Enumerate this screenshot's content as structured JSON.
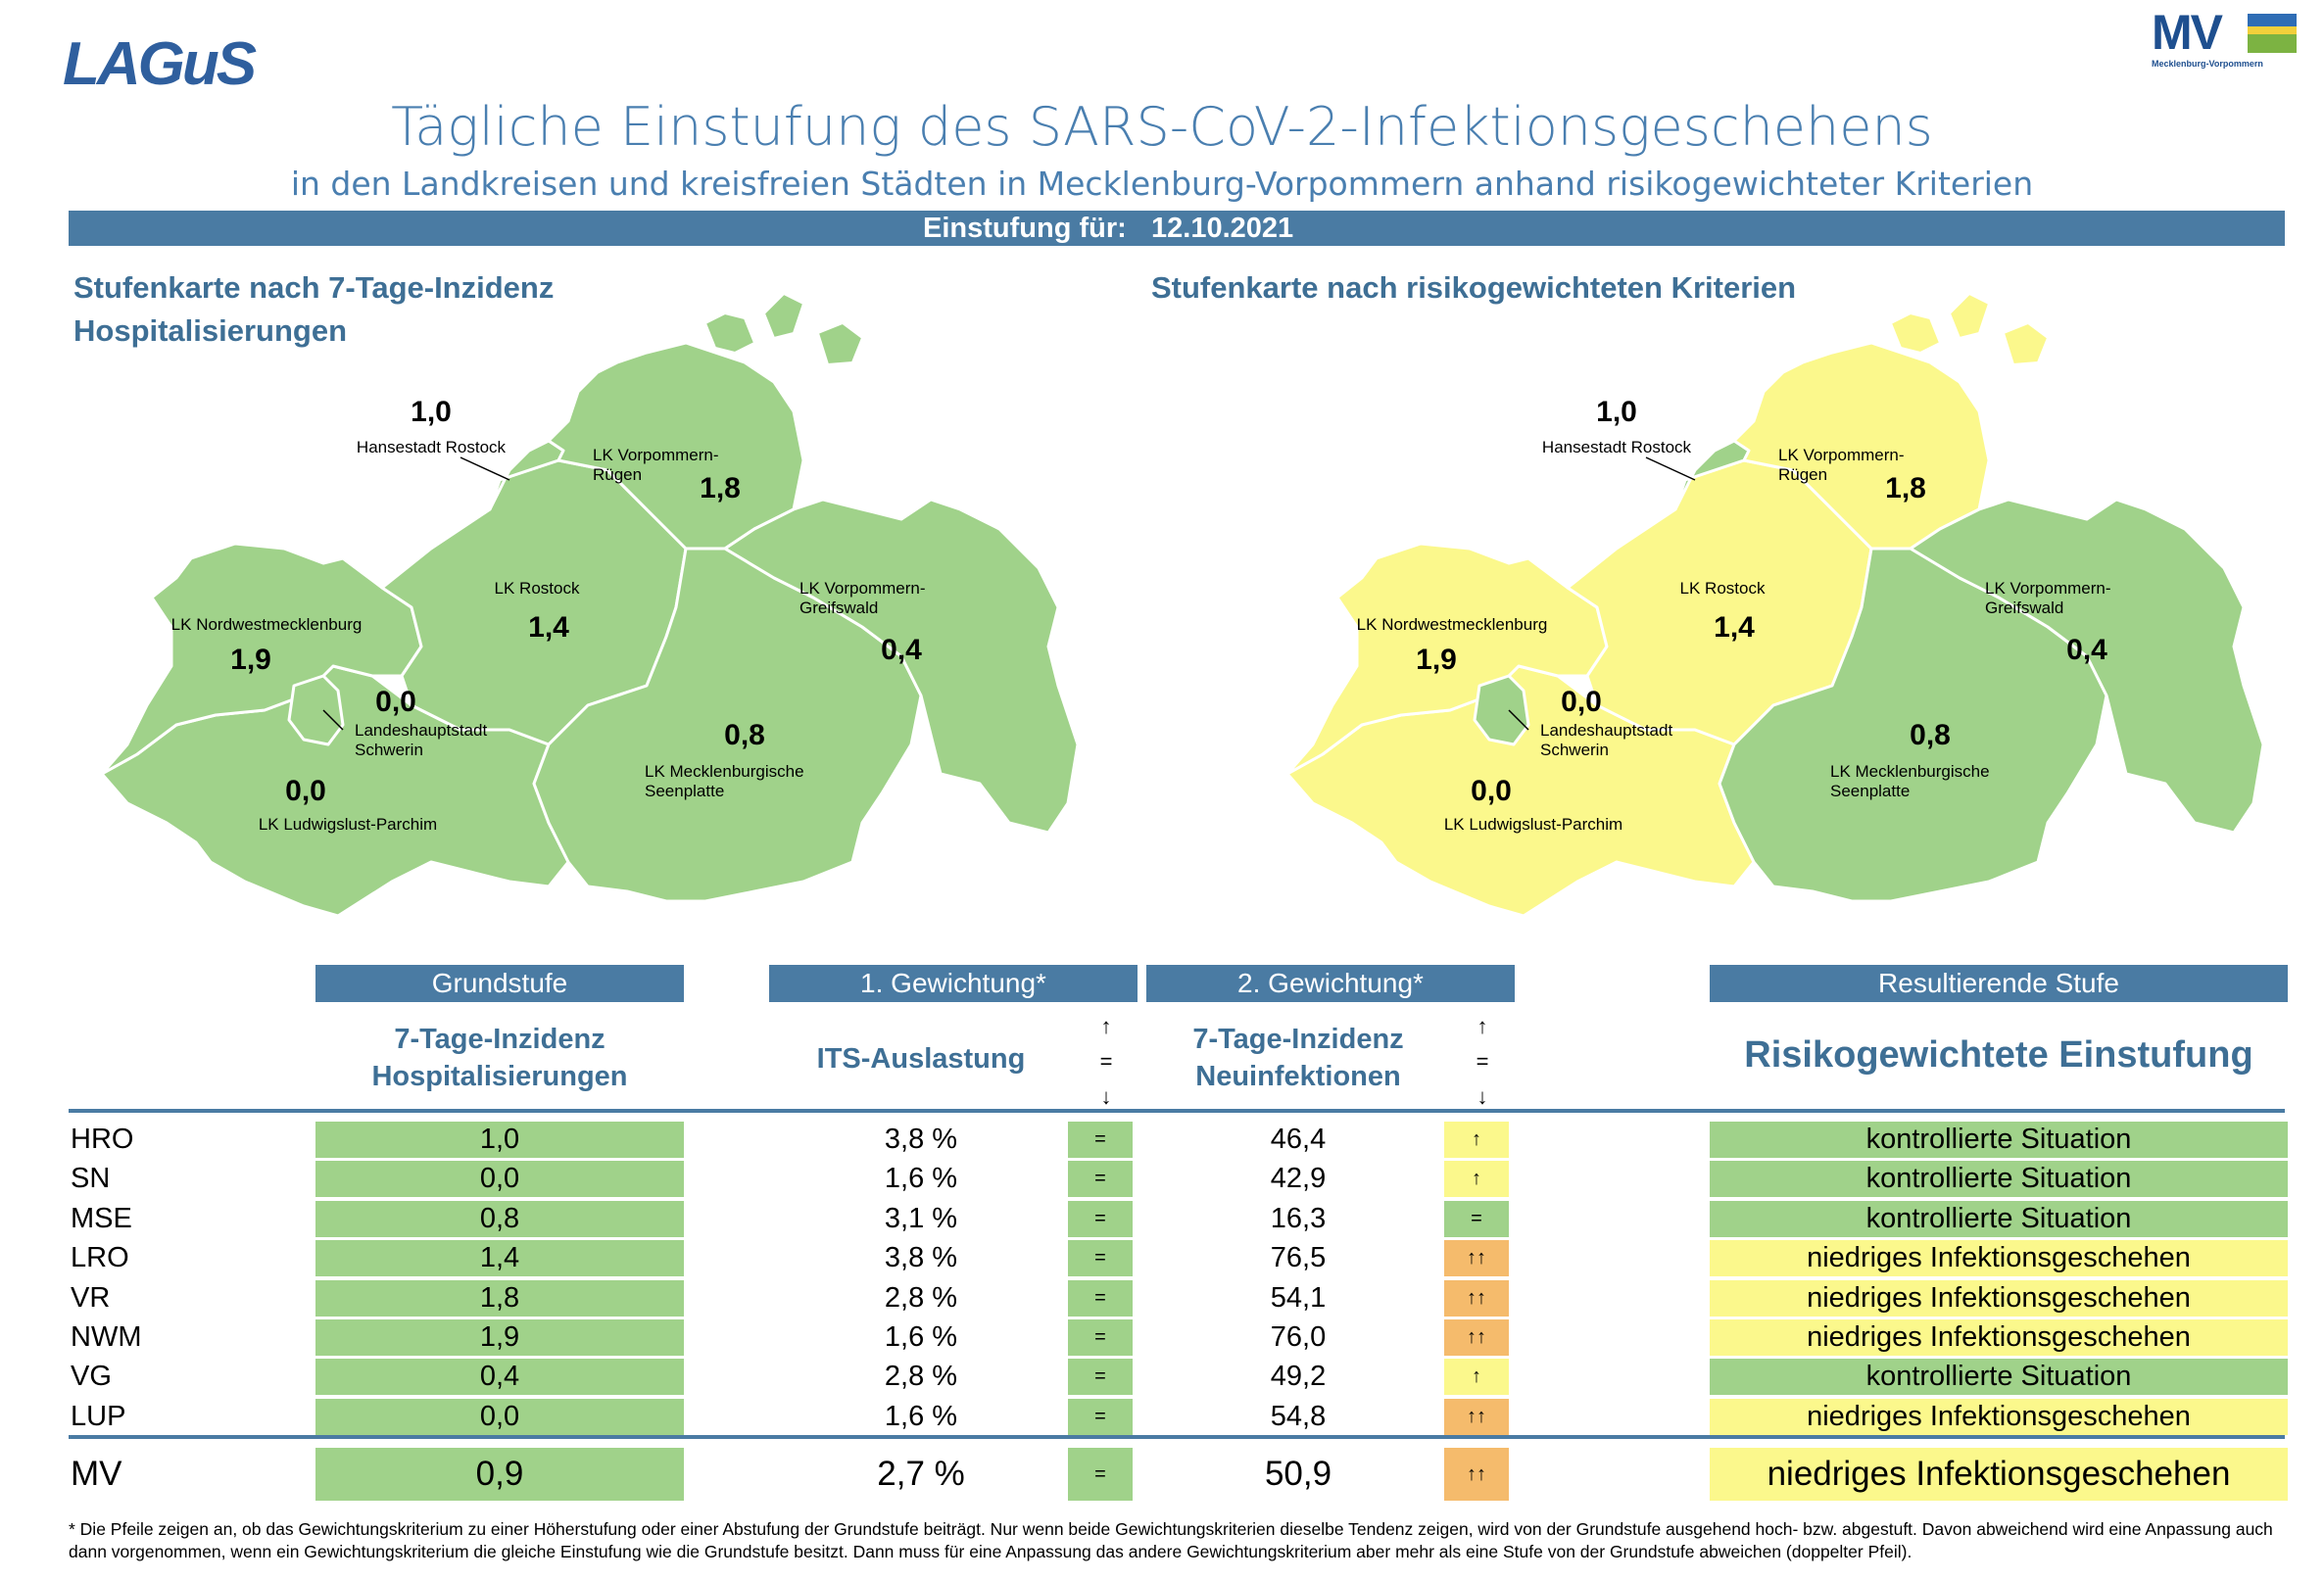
{
  "header": {
    "logo_left": "LAGuS",
    "logo_right": "MV",
    "logo_right_sub": "Mecklenburg-Vorpommern",
    "title": "Tägliche Einstufung des SARS-CoV-2-Infektionsgeschehens",
    "subtitle": "in den Landkreisen und kreisfreien Städten in Mecklenburg-Vorpommern anhand risikogewichteter Kriterien",
    "date_label": "Einstufung für:",
    "date_value": "12.10.2021"
  },
  "maps": {
    "left_title_1": "Stufenkarte nach 7-Tage-Inzidenz",
    "left_title_2": "Hospitalisierungen",
    "right_title": "Stufenkarte nach risikogewichteten Kriterien",
    "regions": {
      "hro": {
        "name": "Hansestadt Rostock",
        "value": "1,0",
        "left_color": "#a0d28a",
        "right_color": "#a0d28a"
      },
      "vr": {
        "name_1": "LK Vorpommern-",
        "name_2": "Rügen",
        "value": "1,8",
        "left_color": "#a0d28a",
        "right_color": "#fbf88c"
      },
      "lro": {
        "name": "LK Rostock",
        "value": "1,4",
        "left_color": "#a0d28a",
        "right_color": "#fbf88c"
      },
      "vg": {
        "name_1": "LK Vorpommern-",
        "name_2": "Greifswald",
        "value": "0,4",
        "left_color": "#a0d28a",
        "right_color": "#a0d28a"
      },
      "nwm": {
        "name": "LK Nordwestmecklenburg",
        "value": "1,9",
        "left_color": "#a0d28a",
        "right_color": "#fbf88c"
      },
      "sn": {
        "name_1": "Landeshauptstadt",
        "name_2": "Schwerin",
        "value": "0,0",
        "left_color": "#a0d28a",
        "right_color": "#a0d28a"
      },
      "mse": {
        "name_1": "LK Mecklenburgische",
        "name_2": "Seenplatte",
        "value": "0,8",
        "left_color": "#a0d28a",
        "right_color": "#a0d28a"
      },
      "lup": {
        "name": "LK Ludwigslust-Parchim",
        "value": "0,0",
        "left_color": "#a0d28a",
        "right_color": "#fbf88c"
      }
    }
  },
  "table": {
    "headers": {
      "grund": "Grundstufe",
      "g1": "1. Gewichtung*",
      "g2": "2. Gewichtung*",
      "result": "Resultierende Stufe"
    },
    "subheaders": {
      "grund_1": "7-Tage-Inzidenz",
      "grund_2": "Hospitalisierungen",
      "its": "ITS-Auslastung",
      "inz_1": "7-Tage-Inzidenz",
      "inz_2": "Neuinfektionen",
      "result": "Risikogewichtete Einstufung",
      "arrow_up": "↑",
      "arrow_eq": "=",
      "arrow_down": "↓"
    },
    "rows": [
      {
        "label": "HRO",
        "grund": "1,0",
        "its": "3,8 %",
        "its_trend": "=",
        "inz": "46,4",
        "inz_trend": "↑",
        "inz_color": "#fbf88c",
        "result": "kontrollierte Situation",
        "result_color": "#a0d28a"
      },
      {
        "label": "SN",
        "grund": "0,0",
        "its": "1,6 %",
        "its_trend": "=",
        "inz": "42,9",
        "inz_trend": "↑",
        "inz_color": "#fbf88c",
        "result": "kontrollierte Situation",
        "result_color": "#a0d28a"
      },
      {
        "label": "MSE",
        "grund": "0,8",
        "its": "3,1 %",
        "its_trend": "=",
        "inz": "16,3",
        "inz_trend": "=",
        "inz_color": "#a0d28a",
        "result": "kontrollierte Situation",
        "result_color": "#a0d28a"
      },
      {
        "label": "LRO",
        "grund": "1,4",
        "its": "3,8 %",
        "its_trend": "=",
        "inz": "76,5",
        "inz_trend": "↑↑",
        "inz_color": "#f5bb6c",
        "result": "niedriges Infektionsgeschehen",
        "result_color": "#fbf88c"
      },
      {
        "label": "VR",
        "grund": "1,8",
        "its": "2,8 %",
        "its_trend": "=",
        "inz": "54,1",
        "inz_trend": "↑↑",
        "inz_color": "#f5bb6c",
        "result": "niedriges Infektionsgeschehen",
        "result_color": "#fbf88c"
      },
      {
        "label": "NWM",
        "grund": "1,9",
        "its": "1,6 %",
        "its_trend": "=",
        "inz": "76,0",
        "inz_trend": "↑↑",
        "inz_color": "#f5bb6c",
        "result": "niedriges Infektionsgeschehen",
        "result_color": "#fbf88c"
      },
      {
        "label": "VG",
        "grund": "0,4",
        "its": "2,8 %",
        "its_trend": "=",
        "inz": "49,2",
        "inz_trend": "↑",
        "inz_color": "#fbf88c",
        "result": "kontrollierte Situation",
        "result_color": "#a0d28a"
      },
      {
        "label": "LUP",
        "grund": "0,0",
        "its": "1,6 %",
        "its_trend": "=",
        "inz": "54,8",
        "inz_trend": "↑↑",
        "inz_color": "#f5bb6c",
        "result": "niedriges Infektionsgeschehen",
        "result_color": "#fbf88c"
      }
    ],
    "total": {
      "label": "MV",
      "grund": "0,9",
      "its": "2,7 %",
      "its_trend": "=",
      "inz": "50,9",
      "inz_trend": "↑↑",
      "inz_color": "#f5bb6c",
      "result": "niedriges Infektionsgeschehen",
      "result_color": "#fbf88c"
    }
  },
  "footnote": "* Die Pfeile zeigen an, ob das Gewichtungskriterium zu einer Höherstufung oder einer Abstufung der Grundstufe beiträgt. Nur wenn beide Gewichtungskriterien dieselbe Tendenz zeigen, wird von der Grundstufe ausgehend hoch- bzw. abgestuft.  Davon abweichend wird eine Anpassung auch dann vorgenommen, wenn ein Gewichtungskriterium die gleiche Einstufung wie die Grundstufe besitzt. Dann muss für eine Anpassung das andere Gewichtungskriterium aber mehr als eine Stufe von der Grundstufe abweichen (doppelter Pfeil)."
}
